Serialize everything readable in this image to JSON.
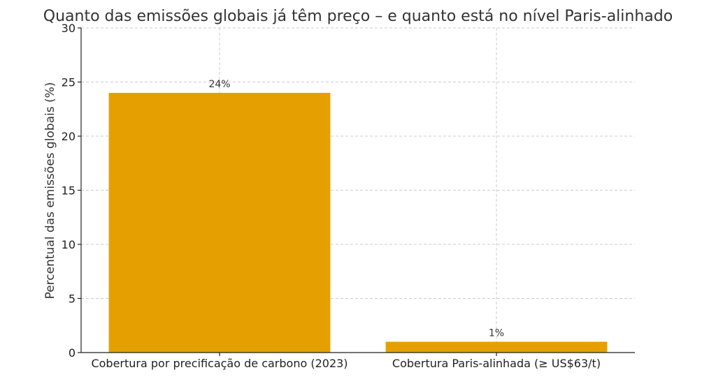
{
  "chart_data": {
    "type": "bar",
    "title": "Quanto das emissões globais já têm preço – e quanto está no nível Paris-alinhado",
    "xlabel": "",
    "ylabel": "Percentual das emissões globais (%)",
    "categories": [
      "Cobertura por precificação de carbono (2023)",
      "Cobertura Paris-alinhada (≥ US$63/t)"
    ],
    "values": [
      24,
      1
    ],
    "data_labels": [
      "24%",
      "1%"
    ],
    "ylim": [
      0,
      30
    ],
    "yticks": [
      0,
      5,
      10,
      15,
      20,
      25,
      30
    ],
    "bar_color": "#e5a000",
    "grid": true
  }
}
